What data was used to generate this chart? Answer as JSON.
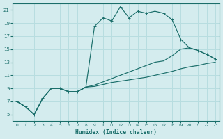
{
  "xlabel": "Humidex (Indice chaleur)",
  "bg_color": "#d4ecee",
  "grid_color": "#b8dde0",
  "line_color": "#1a6e6a",
  "xlim": [
    -0.5,
    23.5
  ],
  "ylim": [
    4,
    22
  ],
  "xticks": [
    0,
    1,
    2,
    3,
    4,
    5,
    6,
    7,
    8,
    9,
    10,
    11,
    12,
    13,
    14,
    15,
    16,
    17,
    18,
    19,
    20,
    21,
    22,
    23
  ],
  "yticks": [
    5,
    7,
    9,
    11,
    13,
    15,
    17,
    19,
    21
  ],
  "line1_y": [
    7.0,
    6.2,
    5.0,
    7.5,
    9.0,
    9.0,
    8.5,
    8.5,
    9.2,
    18.5,
    19.8,
    19.3,
    21.5,
    19.8,
    20.8,
    20.5,
    20.8,
    20.5,
    19.5,
    16.5,
    15.2,
    14.8,
    14.2,
    13.5
  ],
  "line2_y": [
    7.0,
    6.2,
    5.0,
    7.5,
    9.0,
    9.0,
    8.5,
    8.5,
    9.2,
    9.5,
    10.0,
    10.5,
    11.0,
    11.5,
    12.0,
    12.5,
    13.0,
    13.2,
    14.0,
    15.0,
    15.2,
    14.8,
    14.2,
    13.5
  ],
  "line3_y": [
    7.0,
    6.2,
    5.0,
    7.5,
    9.0,
    9.0,
    8.5,
    8.5,
    9.2,
    9.3,
    9.6,
    9.9,
    10.1,
    10.3,
    10.5,
    10.7,
    11.0,
    11.3,
    11.6,
    12.0,
    12.3,
    12.5,
    12.8,
    13.0
  ]
}
